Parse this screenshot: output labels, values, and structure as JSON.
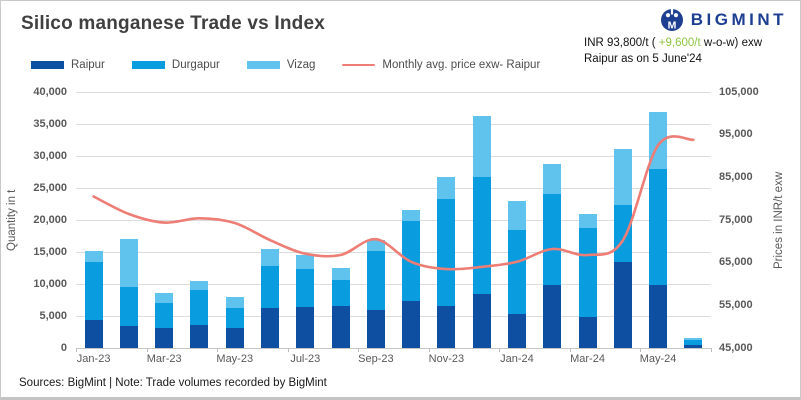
{
  "header": {
    "title": "Silico manganese Trade vs Index",
    "brand": "BIGMINT",
    "price": {
      "prefix": "INR 93,800/t ( ",
      "change": "+9,600/t",
      "suffix": " w-o-w) exw",
      "line2": "Raipur as on 5 June'24"
    }
  },
  "legend": [
    {
      "label": "Raipur",
      "type": "bar",
      "color": "#0e4fa1"
    },
    {
      "label": "Durgapur",
      "type": "bar",
      "color": "#099de0"
    },
    {
      "label": "Vizag",
      "type": "bar",
      "color": "#5fc3ee"
    },
    {
      "label": "Monthly avg. price exw- Raipur",
      "type": "line",
      "color": "#ed7d75"
    }
  ],
  "chart_data": {
    "type": "bar",
    "stacked": true,
    "categories": [
      "Jan-23",
      "Feb-23",
      "Mar-23",
      "Apr-23",
      "May-23",
      "Jun-23",
      "Jul-23",
      "Aug-23",
      "Sep-23",
      "Oct-23",
      "Nov-23",
      "Dec-23",
      "Jan-24",
      "Feb-24",
      "Mar-24",
      "Apr-24",
      "May-24",
      "Jun-24"
    ],
    "x_labels_shown_indices": [
      0,
      2,
      4,
      6,
      8,
      10,
      12,
      14,
      16
    ],
    "series": [
      {
        "name": "Raipur",
        "color": "#0e4fa1",
        "values": [
          4400,
          3400,
          3100,
          3600,
          3200,
          6200,
          6400,
          6500,
          6000,
          7400,
          6500,
          8400,
          5300,
          9900,
          4800,
          13400,
          9800,
          400
        ]
      },
      {
        "name": "Durgapur",
        "color": "#099de0",
        "values": [
          9000,
          6100,
          3900,
          5400,
          3100,
          6600,
          5900,
          4200,
          9200,
          12400,
          16800,
          18300,
          13200,
          14200,
          14000,
          8900,
          18100,
          800
        ]
      },
      {
        "name": "Vizag",
        "color": "#5fc3ee",
        "values": [
          1700,
          7500,
          1600,
          1400,
          1600,
          2600,
          2300,
          1800,
          1700,
          1700,
          3400,
          9500,
          4500,
          4600,
          2100,
          8800,
          8900,
          300
        ]
      }
    ],
    "line_series": {
      "name": "Monthly avg. price exw- Raipur",
      "color": "#ed7d75",
      "axis": "right",
      "values": [
        80500,
        76400,
        74400,
        75400,
        74300,
        70300,
        67100,
        66800,
        70500,
        65200,
        63500,
        64000,
        65200,
        68200,
        66800,
        70200,
        92500,
        93800
      ]
    },
    "left_axis": {
      "label": "Quantity in t",
      "min": 0,
      "max": 40000,
      "step": 5000,
      "tick_labels": [
        "0",
        "5,000",
        "10,000",
        "15,000",
        "20,000",
        "25,000",
        "30,000",
        "35,000",
        "40,000"
      ]
    },
    "right_axis": {
      "label": "Prices in INR/t exw",
      "min": 45000,
      "max": 105000,
      "step": 10000,
      "tick_labels": [
        "45,000",
        "55,000",
        "65,000",
        "75,000",
        "85,000",
        "95,000",
        "105,000"
      ]
    },
    "grid": true,
    "legend_position": "top"
  },
  "footer": {
    "text": "Sources: BigMint | Note: Trade volumes recorded by BigMint"
  }
}
